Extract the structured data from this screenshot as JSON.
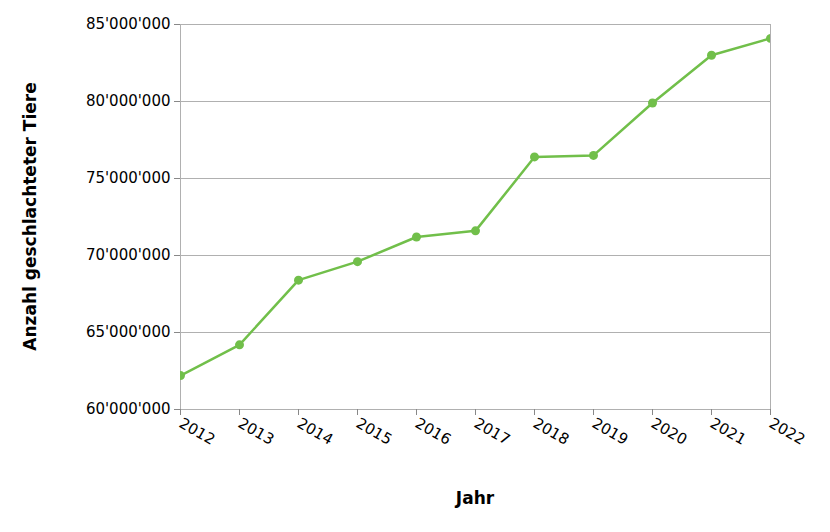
{
  "chart_data": {
    "type": "line",
    "x_label": "Jahr",
    "y_label": "Anzahl geschlachteter Tiere",
    "x": [
      2012,
      2013,
      2014,
      2015,
      2016,
      2017,
      2018,
      2019,
      2020,
      2021,
      2022
    ],
    "values": [
      62200000,
      64200000,
      68400000,
      69600000,
      71200000,
      71600000,
      76400000,
      76500000,
      79900000,
      83000000,
      84100000
    ],
    "color": "#71bf4a",
    "marker": "circle",
    "xlim": [
      2012,
      2022
    ],
    "xticks": [
      2012,
      2013,
      2014,
      2015,
      2016,
      2017,
      2018,
      2019,
      2020,
      2021,
      2022
    ],
    "ylim": [
      60000000,
      85000000
    ],
    "yticks": [
      {
        "value": 60000000,
        "label": "60'000'000"
      },
      {
        "value": 65000000,
        "label": "65'000'000"
      },
      {
        "value": 70000000,
        "label": "70'000'000"
      },
      {
        "value": 75000000,
        "label": "75'000'000"
      },
      {
        "value": 80000000,
        "label": "80'000'000"
      },
      {
        "value": 85000000,
        "label": "85'000'000"
      }
    ],
    "grid": true
  }
}
